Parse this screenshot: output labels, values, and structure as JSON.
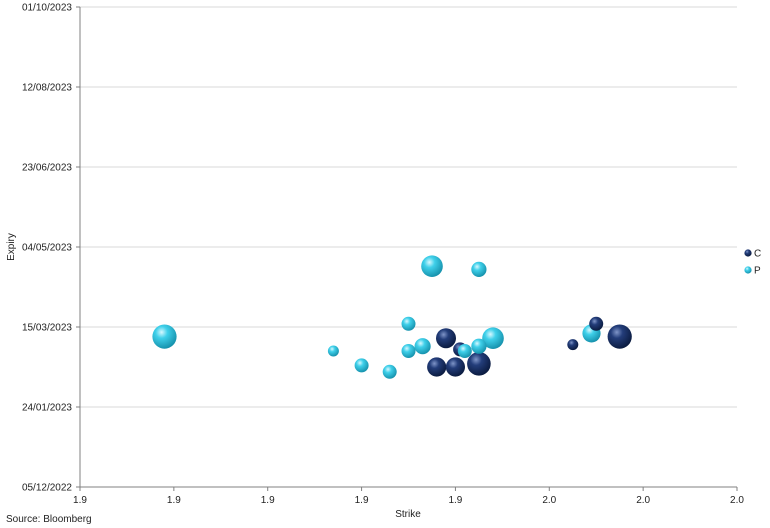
{
  "chart_data": {
    "type": "scatter",
    "variant": "bubble",
    "xlabel": "Strike",
    "ylabel": "Expiry",
    "x_tick_labels": [
      "1.9",
      "1.9",
      "1.9",
      "1.9",
      "1.9",
      "2.0",
      "2.0",
      "2.0"
    ],
    "xlim": [
      1.88,
      1.95
    ],
    "y_tick_labels": [
      "01/10/2023",
      "12/08/2023",
      "23/06/2023",
      "04/05/2023",
      "15/03/2023",
      "24/01/2023",
      "05/12/2022"
    ],
    "ylim": [
      "2022-12-05",
      "2023-10-01"
    ],
    "grid": true,
    "legend_position": "right",
    "colors": {
      "C": "#14285a",
      "P": "#2ec4e0"
    },
    "series": [
      {
        "name": "C",
        "points": [
          {
            "x": 1.919,
            "y": "2023-03-08",
            "size": 10
          },
          {
            "x": 1.918,
            "y": "2023-02-18",
            "size": 9
          },
          {
            "x": 1.92,
            "y": "2023-02-18",
            "size": 9
          },
          {
            "x": 1.9205,
            "y": "2023-03-01",
            "size": 4
          },
          {
            "x": 1.9225,
            "y": "2023-02-20",
            "size": 15
          },
          {
            "x": 1.9325,
            "y": "2023-03-04",
            "size": 2
          },
          {
            "x": 1.935,
            "y": "2023-03-17",
            "size": 4
          },
          {
            "x": 1.9375,
            "y": "2023-03-09",
            "size": 16
          }
        ]
      },
      {
        "name": "P",
        "points": [
          {
            "x": 1.889,
            "y": "2023-03-09",
            "size": 16
          },
          {
            "x": 1.907,
            "y": "2023-02-28",
            "size": 2
          },
          {
            "x": 1.91,
            "y": "2023-02-19",
            "size": 4
          },
          {
            "x": 1.913,
            "y": "2023-02-15",
            "size": 4
          },
          {
            "x": 1.915,
            "y": "2023-02-28",
            "size": 4
          },
          {
            "x": 1.915,
            "y": "2023-03-17",
            "size": 4
          },
          {
            "x": 1.9165,
            "y": "2023-03-03",
            "size": 6
          },
          {
            "x": 1.9175,
            "y": "2023-04-22",
            "size": 12
          },
          {
            "x": 1.921,
            "y": "2023-02-28",
            "size": 4
          },
          {
            "x": 1.9225,
            "y": "2023-03-03",
            "size": 5
          },
          {
            "x": 1.9225,
            "y": "2023-04-20",
            "size": 5
          },
          {
            "x": 1.924,
            "y": "2023-03-08",
            "size": 12
          },
          {
            "x": 1.9345,
            "y": "2023-03-11",
            "size": 8
          }
        ]
      }
    ]
  },
  "source": "Source: Bloomberg"
}
